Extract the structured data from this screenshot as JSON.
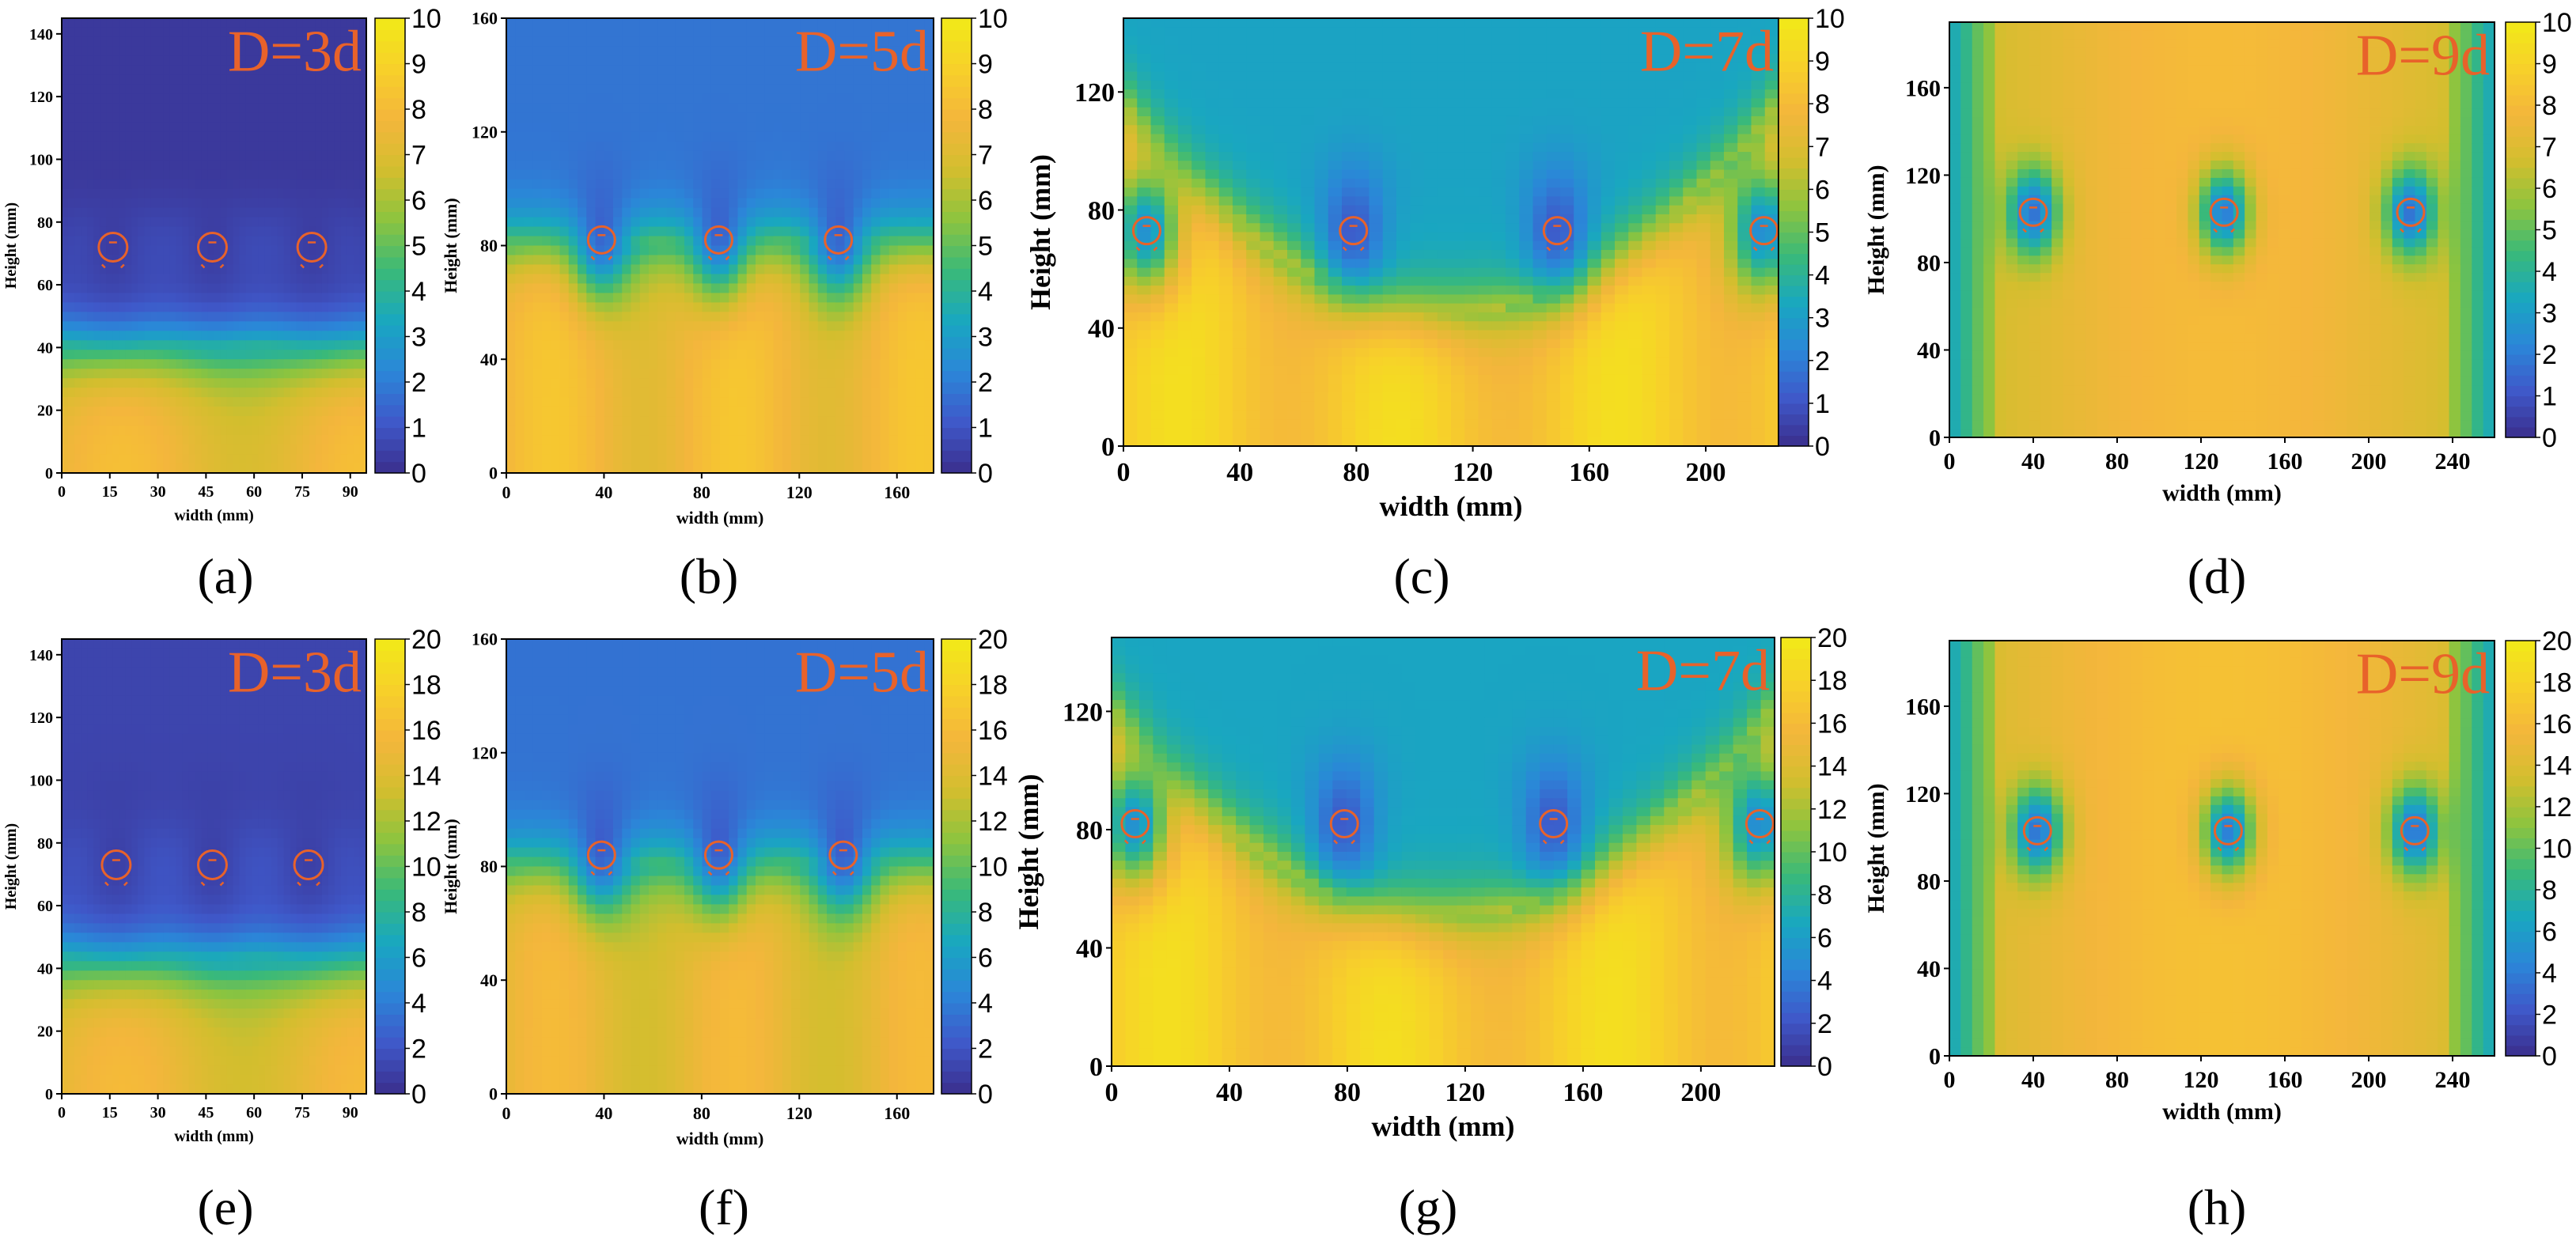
{
  "colors": {
    "colormap": [
      "#3a2e8c",
      "#3f58c9",
      "#2b86d8",
      "#19a7c0",
      "#39b97a",
      "#8cc43f",
      "#d3be2e",
      "#f4b63c",
      "#f7d02a",
      "#f1ea18"
    ],
    "annotation": "#e8622a"
  },
  "chart_data": [
    {
      "panel": "a",
      "caption": "(a)",
      "type": "heatmap",
      "title": "D=3d",
      "xlabel": "width (mm)",
      "ylabel": "Height (mm)",
      "xlim": [
        0,
        95
      ],
      "ylim": [
        0,
        145
      ],
      "xticks": [
        "0",
        "15",
        "30",
        "45",
        "60",
        "75",
        "90"
      ],
      "yticks": [
        "0",
        "20",
        "40",
        "60",
        "80",
        "100",
        "120",
        "140"
      ],
      "colorbar": {
        "min": 0,
        "max": 10,
        "ticks": [
          "0",
          "1",
          "2",
          "3",
          "4",
          "5",
          "6",
          "7",
          "8",
          "9",
          "10"
        ]
      },
      "pillar_x": [
        16,
        47,
        78
      ],
      "pillar_y": 72,
      "profile": {
        "bottom": 8.2,
        "transition_height": 40,
        "upper": 0.3
      }
    },
    {
      "panel": "b",
      "caption": "(b)",
      "type": "heatmap",
      "title": "D=5d",
      "xlabel": "width (mm)",
      "ylabel": "Height (mm)",
      "xlim": [
        0,
        175
      ],
      "ylim": [
        0,
        160
      ],
      "xticks": [
        "0",
        "40",
        "80",
        "120",
        "160"
      ],
      "yticks": [
        "0",
        "40",
        "80",
        "120",
        "160"
      ],
      "colorbar": {
        "min": 0,
        "max": 10,
        "ticks": [
          "0",
          "1",
          "2",
          "3",
          "4",
          "5",
          "6",
          "7",
          "8",
          "9",
          "10"
        ]
      },
      "pillar_x": [
        39,
        87,
        136
      ],
      "pillar_y": 82,
      "profile": {
        "bottom": 8.5,
        "transition_height": 80,
        "upper": 1.8
      }
    },
    {
      "panel": "c",
      "caption": "(c)",
      "type": "heatmap",
      "title": "D=7d",
      "xlabel": "width (mm)",
      "ylabel": "Height (mm)",
      "xlim": [
        0,
        225
      ],
      "ylim": [
        0,
        145
      ],
      "xticks": [
        "0",
        "40",
        "80",
        "120",
        "160",
        "200"
      ],
      "yticks": [
        "0",
        "40",
        "80",
        "120"
      ],
      "colorbar": {
        "min": 0,
        "max": 10,
        "ticks": [
          "0",
          "1",
          "2",
          "3",
          "4",
          "5",
          "6",
          "7",
          "8",
          "9",
          "10"
        ]
      },
      "pillar_x": [
        8,
        79,
        149,
        220
      ],
      "pillar_y": 73,
      "profile": {
        "bottom": 9.5,
        "transition_height": 45,
        "upper": 3.2
      }
    },
    {
      "panel": "d",
      "caption": "(d)",
      "type": "heatmap",
      "title": "D=9d",
      "xlabel": "width (mm)",
      "ylabel": "Height (mm)",
      "xlim": [
        0,
        260
      ],
      "ylim": [
        0,
        190
      ],
      "xticks": [
        "0",
        "40",
        "80",
        "120",
        "160",
        "200",
        "240"
      ],
      "yticks": [
        "0",
        "40",
        "80",
        "120",
        "160"
      ],
      "colorbar": {
        "min": 0,
        "max": 10,
        "ticks": [
          "0",
          "1",
          "2",
          "3",
          "4",
          "5",
          "6",
          "7",
          "8",
          "9",
          "10"
        ]
      },
      "pillar_x": [
        40,
        131,
        220
      ],
      "pillar_y": 103,
      "profile": {
        "bottom": 8.0,
        "transition_height": 150,
        "upper": 7.5
      }
    },
    {
      "panel": "e",
      "caption": "(e)",
      "type": "heatmap",
      "title": "D=3d",
      "xlabel": "width (mm)",
      "ylabel": "Height (mm)",
      "xlim": [
        0,
        95
      ],
      "ylim": [
        0,
        145
      ],
      "xticks": [
        "0",
        "15",
        "30",
        "45",
        "60",
        "75",
        "90"
      ],
      "yticks": [
        "0",
        "20",
        "40",
        "60",
        "80",
        "100",
        "120",
        "140"
      ],
      "colorbar": {
        "min": 0,
        "max": 20,
        "ticks": [
          "0",
          "2",
          "4",
          "6",
          "8",
          "10",
          "12",
          "14",
          "16",
          "18",
          "20"
        ]
      },
      "pillar_x": [
        17,
        47,
        77
      ],
      "pillar_y": 73,
      "profile": {
        "bottom": 16,
        "transition_height": 42,
        "upper": 1.2
      }
    },
    {
      "panel": "f",
      "caption": "(f)",
      "type": "heatmap",
      "title": "D=5d",
      "xlabel": "width (mm)",
      "ylabel": "Height (mm)",
      "xlim": [
        0,
        175
      ],
      "ylim": [
        0,
        160
      ],
      "xticks": [
        "0",
        "40",
        "80",
        "120",
        "160"
      ],
      "yticks": [
        "0",
        "40",
        "80",
        "120",
        "160"
      ],
      "colorbar": {
        "min": 0,
        "max": 20,
        "ticks": [
          "0",
          "2",
          "4",
          "6",
          "8",
          "10",
          "12",
          "14",
          "16",
          "18",
          "20"
        ]
      },
      "pillar_x": [
        39,
        87,
        138
      ],
      "pillar_y": 84,
      "profile": {
        "bottom": 16,
        "transition_height": 80,
        "upper": 3.5
      }
    },
    {
      "panel": "g",
      "caption": "(g)",
      "type": "heatmap",
      "title": "D=7d",
      "xlabel": "width (mm)",
      "ylabel": "Height (mm)",
      "xlim": [
        0,
        225
      ],
      "ylim": [
        0,
        145
      ],
      "xticks": [
        "0",
        "40",
        "80",
        "120",
        "160",
        "200"
      ],
      "yticks": [
        "0",
        "40",
        "80",
        "120"
      ],
      "colorbar": {
        "min": 0,
        "max": 20,
        "ticks": [
          "0",
          "2",
          "4",
          "6",
          "8",
          "10",
          "12",
          "14",
          "16",
          "18",
          "20"
        ]
      },
      "pillar_x": [
        8,
        79,
        150,
        220
      ],
      "pillar_y": 82,
      "profile": {
        "bottom": 19,
        "transition_height": 50,
        "upper": 6.5
      }
    },
    {
      "panel": "h",
      "caption": "(h)",
      "type": "heatmap",
      "title": "D=9d",
      "xlabel": "width (mm)",
      "ylabel": "Height (mm)",
      "xlim": [
        0,
        260
      ],
      "ylim": [
        0,
        190
      ],
      "xticks": [
        "0",
        "40",
        "80",
        "120",
        "160",
        "200",
        "240"
      ],
      "yticks": [
        "0",
        "40",
        "80",
        "120",
        "160"
      ],
      "colorbar": {
        "min": 0,
        "max": 20,
        "ticks": [
          "0",
          "2",
          "4",
          "6",
          "8",
          "10",
          "12",
          "14",
          "16",
          "18",
          "20"
        ]
      },
      "pillar_x": [
        42,
        133,
        222
      ],
      "pillar_y": 103,
      "profile": {
        "bottom": 16.5,
        "transition_height": 150,
        "upper": 15
      }
    }
  ]
}
